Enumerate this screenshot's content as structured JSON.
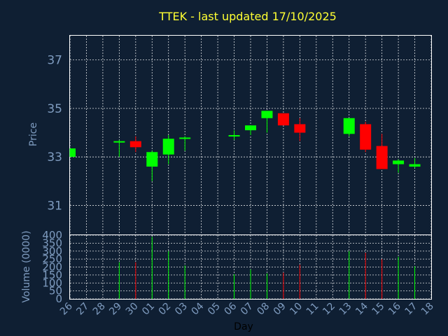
{
  "chart_data": {
    "type": "candlestick",
    "title": "TTEK - last updated 17/10/2025",
    "price_panel": {
      "ylabel": "Price",
      "ylim": [
        29.8,
        38.0
      ],
      "yticks": [
        31,
        33,
        35,
        37
      ],
      "grid": true
    },
    "volume_panel": {
      "ylabel": "Volume (0000)",
      "ylim": [
        0,
        400
      ],
      "yticks": [
        0,
        50,
        100,
        150,
        200,
        250,
        300,
        350,
        400
      ],
      "grid": true
    },
    "xlabel": "Day",
    "x_tick_labels": [
      "26",
      "27",
      "28",
      "29",
      "30",
      "01",
      "02",
      "03",
      "04",
      "05",
      "06",
      "07",
      "08",
      "09",
      "10",
      "11",
      "12",
      "13",
      "14",
      "15",
      "16",
      "17",
      "18"
    ],
    "up_color": "#00ff00",
    "down_color": "#ff0000",
    "candles": [
      {
        "day": "26",
        "open": 33.0,
        "high": 33.35,
        "low": 33.0,
        "close": 33.35,
        "volume": 0
      },
      {
        "day": "29",
        "open": 33.6,
        "high": 33.7,
        "low": 33.0,
        "close": 33.65,
        "volume": 230
      },
      {
        "day": "30",
        "open": 33.65,
        "high": 33.85,
        "low": 33.2,
        "close": 33.4,
        "volume": 230
      },
      {
        "day": "01",
        "open": 32.6,
        "high": 33.25,
        "low": 32.0,
        "close": 33.2,
        "volume": 390
      },
      {
        "day": "02",
        "open": 33.1,
        "high": 33.9,
        "low": 32.7,
        "close": 33.75,
        "volume": 300
      },
      {
        "day": "03",
        "open": 33.75,
        "high": 33.85,
        "low": 33.25,
        "close": 33.8,
        "volume": 210
      },
      {
        "day": "06",
        "open": 33.85,
        "high": 34.1,
        "low": 33.7,
        "close": 33.9,
        "volume": 155
      },
      {
        "day": "07",
        "open": 34.1,
        "high": 34.3,
        "low": 33.9,
        "close": 34.3,
        "volume": 185
      },
      {
        "day": "08",
        "open": 34.6,
        "high": 34.9,
        "low": 34.0,
        "close": 34.9,
        "volume": 160
      },
      {
        "day": "09",
        "open": 34.8,
        "high": 34.8,
        "low": 34.3,
        "close": 34.3,
        "volume": 165
      },
      {
        "day": "10",
        "open": 34.35,
        "high": 34.6,
        "low": 33.65,
        "close": 34.0,
        "volume": 215
      },
      {
        "day": "13",
        "open": 33.95,
        "high": 34.6,
        "low": 33.85,
        "close": 34.6,
        "volume": 300
      },
      {
        "day": "14",
        "open": 34.35,
        "high": 34.45,
        "low": 33.2,
        "close": 33.3,
        "volume": 290
      },
      {
        "day": "15",
        "open": 33.45,
        "high": 33.95,
        "low": 32.5,
        "close": 32.5,
        "volume": 250
      },
      {
        "day": "16",
        "open": 32.7,
        "high": 32.9,
        "low": 32.35,
        "close": 32.85,
        "volume": 265
      },
      {
        "day": "17",
        "open": 32.6,
        "high": 32.95,
        "low": 32.55,
        "close": 32.7,
        "volume": 205
      }
    ]
  }
}
